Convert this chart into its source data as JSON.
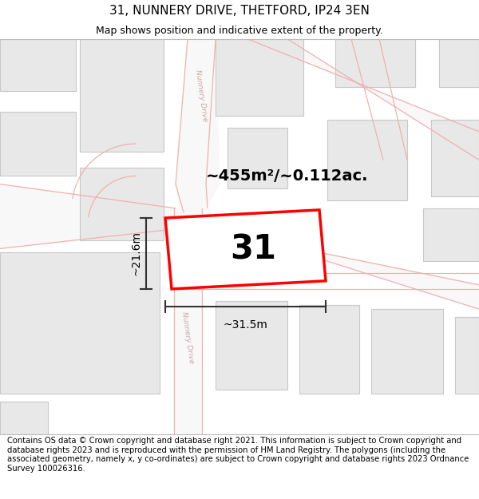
{
  "title": "31, NUNNERY DRIVE, THETFORD, IP24 3EN",
  "subtitle": "Map shows position and indicative extent of the property.",
  "footer": "Contains OS data © Crown copyright and database right 2021. This information is subject to Crown copyright and database rights 2023 and is reproduced with the permission of HM Land Registry. The polygons (including the associated geometry, namely x, y co-ordinates) are subject to Crown copyright and database rights 2023 Ordnance Survey 100026316.",
  "area_label": "~455m²/~0.112ac.",
  "width_label": "~31.5m",
  "height_label": "~21.6m",
  "number_label": "31",
  "bg_color": "#ffffff",
  "road_line_color": "#f0b0b0",
  "building_color": "#e8e8e8",
  "building_edge_color": "#c8c8c8",
  "highlight_color": "#ff0000",
  "dimension_color": "#333333",
  "road_label_color": "#c8a8a8",
  "title_fontsize": 11,
  "subtitle_fontsize": 9,
  "footer_fontsize": 7.2,
  "label_fontsize": 14,
  "number_fontsize": 30,
  "dim_fontsize": 10
}
